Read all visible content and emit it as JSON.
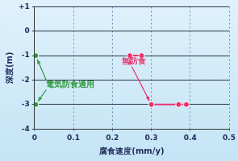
{
  "chart_data": {
    "type": "scatter",
    "x_label": "腐食速度(mm/y)",
    "y_label": "深度(m)",
    "xlim": [
      0,
      0.5
    ],
    "xticks": [
      0,
      0.1,
      0.2,
      0.3,
      0.4,
      0.5
    ],
    "ylim": [
      -4,
      1
    ],
    "yticks": [
      {
        "value": 1,
        "label": "+1"
      },
      0,
      -1,
      -2,
      -3,
      -4
    ],
    "grid": true,
    "series": [
      {
        "name": "電気防食適用",
        "color": "#2e9a3c",
        "marker": "circle",
        "line_style": "none",
        "x": [
          0.003,
          0.003
        ],
        "values": [
          -1,
          -3
        ]
      },
      {
        "name": "無防食",
        "color": "#e8336e",
        "marker": "circle",
        "line_style": "solid",
        "x": [
          0.245,
          0.275,
          null,
          0.3,
          0.37,
          0.39
        ],
        "values": [
          -1,
          -1,
          null,
          -3,
          -3,
          -3
        ]
      }
    ]
  }
}
